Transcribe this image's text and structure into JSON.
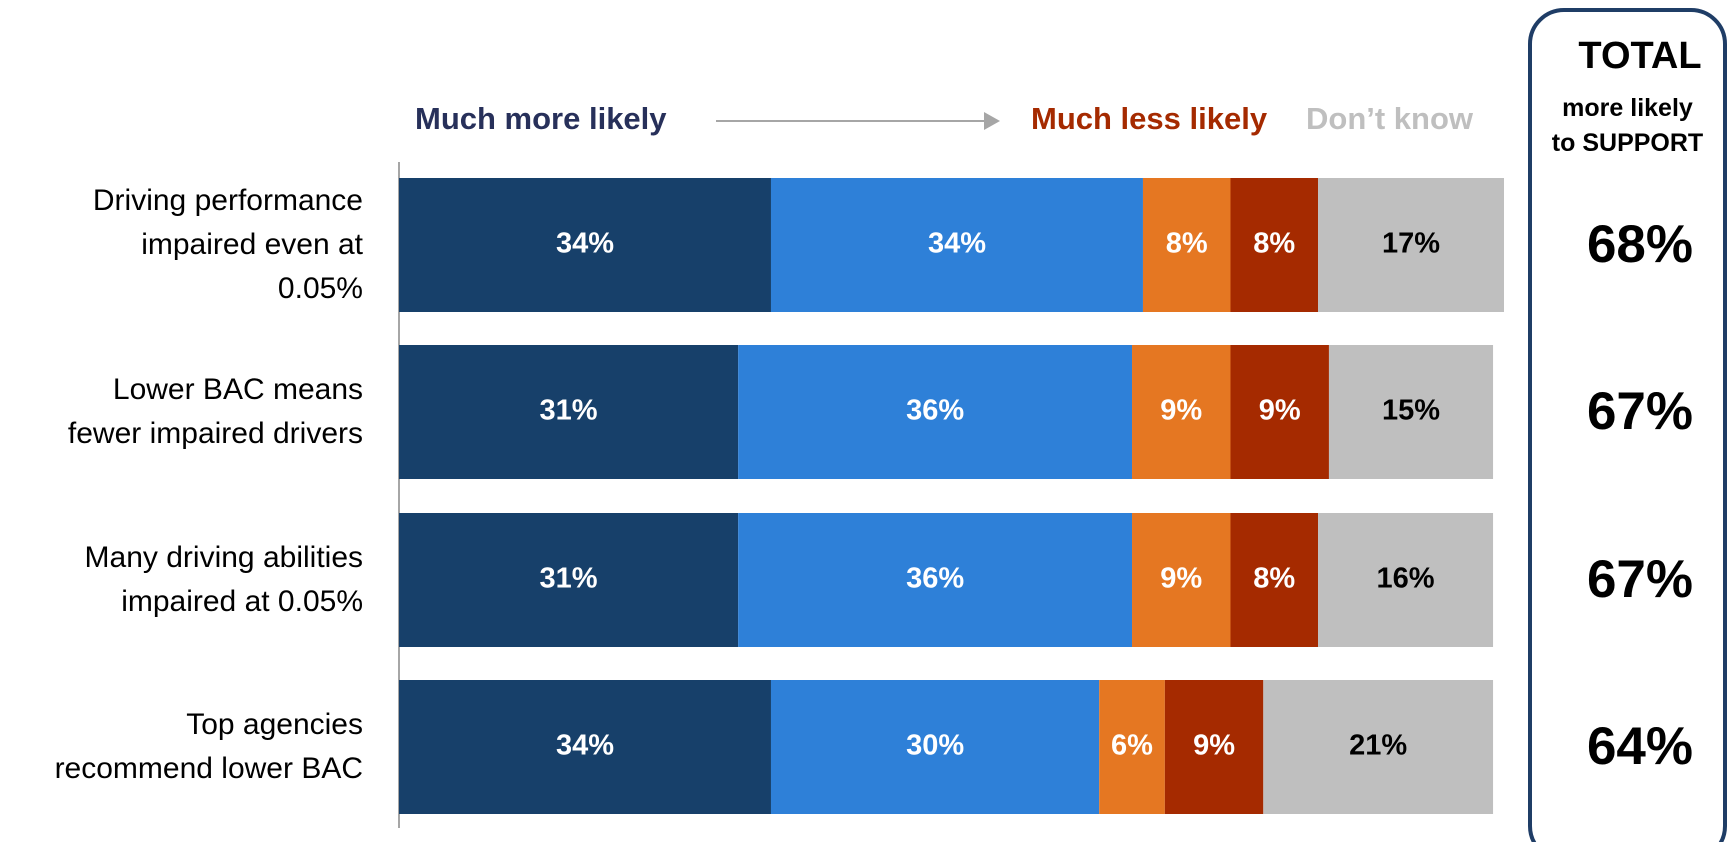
{
  "chart_data": {
    "type": "stacked_bar_horizontal",
    "categories": [
      "Driving performance\nimpaired even at\n0.05%",
      "Lower BAC means\nfewer impaired drivers",
      "Many driving abilities\nimpaired at 0.05%",
      "Top agencies\nrecommend lower BAC"
    ],
    "series": [
      {
        "name": "Much more likely",
        "color": "#17406a",
        "label_color": "#ffffff",
        "values": [
          34,
          31,
          31,
          34
        ],
        "value_labels": [
          "34%",
          "31%",
          "31%",
          "34%"
        ]
      },
      {
        "color": "#2e80d8",
        "label_color": "#ffffff",
        "values": [
          34,
          36,
          36,
          30
        ],
        "value_labels": [
          "34%",
          "36%",
          "36%",
          "30%"
        ]
      },
      {
        "color": "#e57722",
        "label_color": "#ffffff",
        "values": [
          8,
          9,
          9,
          6
        ],
        "value_labels": [
          "8%",
          "9%",
          "9%",
          "6%"
        ]
      },
      {
        "name": "Much less likely",
        "color": "#a52a00",
        "label_color": "#ffffff",
        "values": [
          8,
          9,
          8,
          9
        ],
        "value_labels": [
          "8%",
          "9%",
          "8%",
          "9%"
        ]
      },
      {
        "name": "Don’t know",
        "color": "#bfbfbf",
        "label_color": "#000000",
        "values": [
          17,
          15,
          16,
          21
        ],
        "value_labels": [
          "17%",
          "15%",
          "16%",
          "21%"
        ]
      }
    ],
    "xlim": [
      0,
      101
    ],
    "totals": {
      "title": "TOTAL",
      "subtitle": "more likely\nto SUPPORT",
      "values": [
        68,
        67,
        67,
        64
      ],
      "value_labels": [
        "68%",
        "67%",
        "67%",
        "64%"
      ]
    }
  }
}
